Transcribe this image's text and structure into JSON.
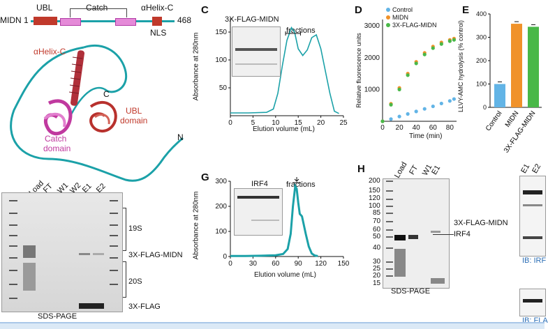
{
  "panel_labels": {
    "c": "C",
    "d": "D",
    "e": "E",
    "g": "G",
    "h": "H"
  },
  "domain_map": {
    "midn_label": "MIDN",
    "start": "1",
    "end": "468",
    "ubl": "UBL",
    "catch": "Catch",
    "ahelix": "αHelix-C",
    "nls": "NLS"
  },
  "structure": {
    "ahelix_label": "αHelix-C",
    "c_term": "C",
    "n_term": "N",
    "ubl_domain": "UBL\ndomain",
    "catch_domain": "Catch\ndomain",
    "ubl_domain_l1": "UBL",
    "ubl_domain_l2": "domain",
    "catch_domain_l1": "Catch",
    "catch_domain_l2": "domain"
  },
  "gel_b": {
    "lanes": [
      "Load",
      "FT",
      "W1",
      "W2",
      "E1",
      "E2"
    ],
    "bands": [
      "19S",
      "3X-FLAG-MIDN",
      "20S",
      "3X-FLAG"
    ],
    "caption": "SDS-PAGE"
  },
  "panel_c": {
    "inset_title": "3X-FLAG-MIDN",
    "fractions": "fractions",
    "ylabel": "Absorbance at 280nm",
    "xlabel": "Elution volume (mL)"
  },
  "panel_g": {
    "inset_title": "IRF4",
    "fractions": "fractions",
    "ylabel": "Absorbance at 280nm",
    "xlabel": "Elution volume (mL)"
  },
  "panel_h": {
    "lanes": [
      "Load",
      "FT",
      "W1",
      "E1"
    ],
    "markers": [
      "200",
      "150",
      "120",
      "100",
      "85",
      "70",
      "60",
      "50",
      "40",
      "30",
      "25",
      "20",
      "15"
    ],
    "band_flag": "3X-FLAG-MIDN",
    "band_irf4": "IRF4",
    "caption": "SDS-PAGE",
    "right_lanes": [
      "E1",
      "E2"
    ],
    "ib1": "IB: IRF",
    "ib2": "IB: FLA"
  },
  "chart_data": [
    {
      "id": "C",
      "type": "line",
      "xlabel": "Elution volume (mL)",
      "ylabel": "Absorbance at 280nm",
      "xlim": [
        0,
        25
      ],
      "ylim": [
        0,
        175
      ],
      "xticks": [
        0,
        5,
        10,
        15,
        20,
        25
      ],
      "yticks": [
        50,
        100,
        150
      ],
      "series": [
        {
          "color": "#1ba1a8",
          "x": [
            0,
            4,
            8,
            9.5,
            10.5,
            11.5,
            12.5,
            13.5,
            14.2,
            15,
            16,
            17,
            18,
            19,
            20,
            21,
            22,
            23,
            24
          ],
          "y": [
            5,
            5,
            6,
            12,
            40,
            90,
            135,
            158,
            150,
            120,
            108,
            118,
            140,
            145,
            120,
            80,
            40,
            8,
            4
          ]
        }
      ]
    },
    {
      "id": "D",
      "type": "scatter",
      "xlabel": "Time (min)",
      "ylabel": "Relative fluorescence units",
      "xlim": [
        0,
        88
      ],
      "ylim": [
        0,
        3200
      ],
      "xticks": [
        0,
        20,
        40,
        60,
        80
      ],
      "yticks": [
        1000,
        2000,
        3000
      ],
      "series": [
        {
          "name": "Control",
          "color": "#62b4e6",
          "x": [
            0,
            10,
            20,
            30,
            40,
            50,
            60,
            70,
            80,
            85
          ],
          "y": [
            0,
            70,
            150,
            230,
            310,
            390,
            470,
            560,
            640,
            700
          ]
        },
        {
          "name": "MIDN",
          "color": "#f0922a",
          "x": [
            0,
            10,
            20,
            30,
            40,
            50,
            60,
            70,
            80,
            85
          ],
          "y": [
            0,
            550,
            1050,
            1500,
            1870,
            2150,
            2350,
            2480,
            2560,
            2600
          ]
        },
        {
          "name": "3X-FLAG-MIDN",
          "color": "#49b848",
          "x": [
            0,
            10,
            20,
            30,
            40,
            50,
            60,
            70,
            80,
            85
          ],
          "y": [
            0,
            520,
            1000,
            1450,
            1820,
            2100,
            2300,
            2430,
            2520,
            2560
          ]
        }
      ]
    },
    {
      "id": "E",
      "type": "bar",
      "ylabel": "LLVY-AMC hydrolysis (% control)",
      "ylim": [
        0,
        400
      ],
      "yticks": [
        0,
        100,
        200,
        300,
        400
      ],
      "categories": [
        "Control",
        "MIDN",
        "3X-FLAG-MIDN"
      ],
      "values": [
        100,
        358,
        345
      ],
      "colors": [
        "#62b4e6",
        "#f0922a",
        "#49b848"
      ]
    },
    {
      "id": "G",
      "type": "line",
      "xlabel": "Elution volume (mL)",
      "ylabel": "Absorbance at 280nm",
      "xlim": [
        0,
        150
      ],
      "ylim": [
        0,
        300
      ],
      "xticks": [
        0,
        30,
        60,
        90,
        120,
        150
      ],
      "yticks": [
        0,
        100,
        200,
        300
      ],
      "series": [
        {
          "color": "#1ba1a8",
          "x": [
            0,
            20,
            40,
            60,
            70,
            76,
            80,
            83,
            86,
            88,
            90,
            92,
            95,
            100,
            104,
            108,
            112,
            116
          ],
          "y": [
            2,
            2,
            3,
            5,
            10,
            30,
            90,
            200,
            280,
            270,
            215,
            170,
            160,
            90,
            40,
            12,
            4,
            2
          ]
        }
      ]
    }
  ]
}
